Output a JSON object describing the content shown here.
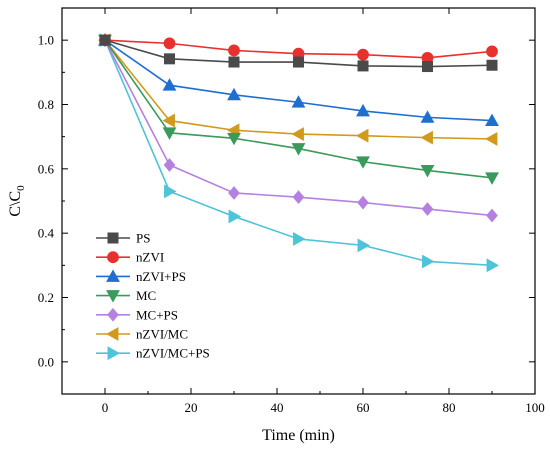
{
  "chart_data": {
    "type": "line",
    "xlabel": "Time (min)",
    "ylabel": "C\\C",
    "ylabel_sub": "0",
    "xlim": [
      -10,
      100
    ],
    "ylim": [
      -0.1,
      1.1
    ],
    "x_ticks": [
      0,
      20,
      40,
      60,
      80,
      100
    ],
    "y_ticks": [
      0.0,
      0.2,
      0.4,
      0.6,
      0.8,
      1.0
    ],
    "x_tick_labels": [
      "0",
      "20",
      "40",
      "60",
      "80",
      "100"
    ],
    "y_tick_labels": [
      "0.0",
      "0.2",
      "0.4",
      "0.6",
      "0.8",
      "1.0"
    ],
    "grid": false,
    "legend_position": "bottom-left",
    "x": [
      0,
      15,
      30,
      45,
      60,
      75,
      90
    ],
    "series": [
      {
        "name": "PS",
        "color": "#4a4a4a",
        "marker": "square",
        "values": [
          1.0,
          0.942,
          0.932,
          0.932,
          0.92,
          0.918,
          0.922
        ]
      },
      {
        "name": "nZVI",
        "color": "#e8312f",
        "marker": "circle",
        "values": [
          1.0,
          0.99,
          0.968,
          0.958,
          0.955,
          0.945,
          0.965
        ]
      },
      {
        "name": "nZVI+PS",
        "color": "#1f6fd1",
        "marker": "triangle-up",
        "values": [
          1.0,
          0.86,
          0.83,
          0.807,
          0.78,
          0.76,
          0.75
        ]
      },
      {
        "name": "MC",
        "color": "#3a9a5b",
        "marker": "triangle-down",
        "values": [
          1.0,
          0.712,
          0.695,
          0.663,
          0.622,
          0.595,
          0.572
        ]
      },
      {
        "name": "MC+PS",
        "color": "#b481e0",
        "marker": "diamond",
        "values": [
          1.0,
          0.612,
          0.525,
          0.512,
          0.495,
          0.475,
          0.455
        ]
      },
      {
        "name": "nZVI/MC",
        "color": "#d19a1e",
        "marker": "triangle-left",
        "values": [
          1.0,
          0.75,
          0.72,
          0.708,
          0.703,
          0.697,
          0.693
        ]
      },
      {
        "name": "nZVI/MC+PS",
        "color": "#4fc3d8",
        "marker": "triangle-right",
        "values": [
          1.0,
          0.53,
          0.452,
          0.382,
          0.362,
          0.312,
          0.3
        ]
      }
    ]
  }
}
